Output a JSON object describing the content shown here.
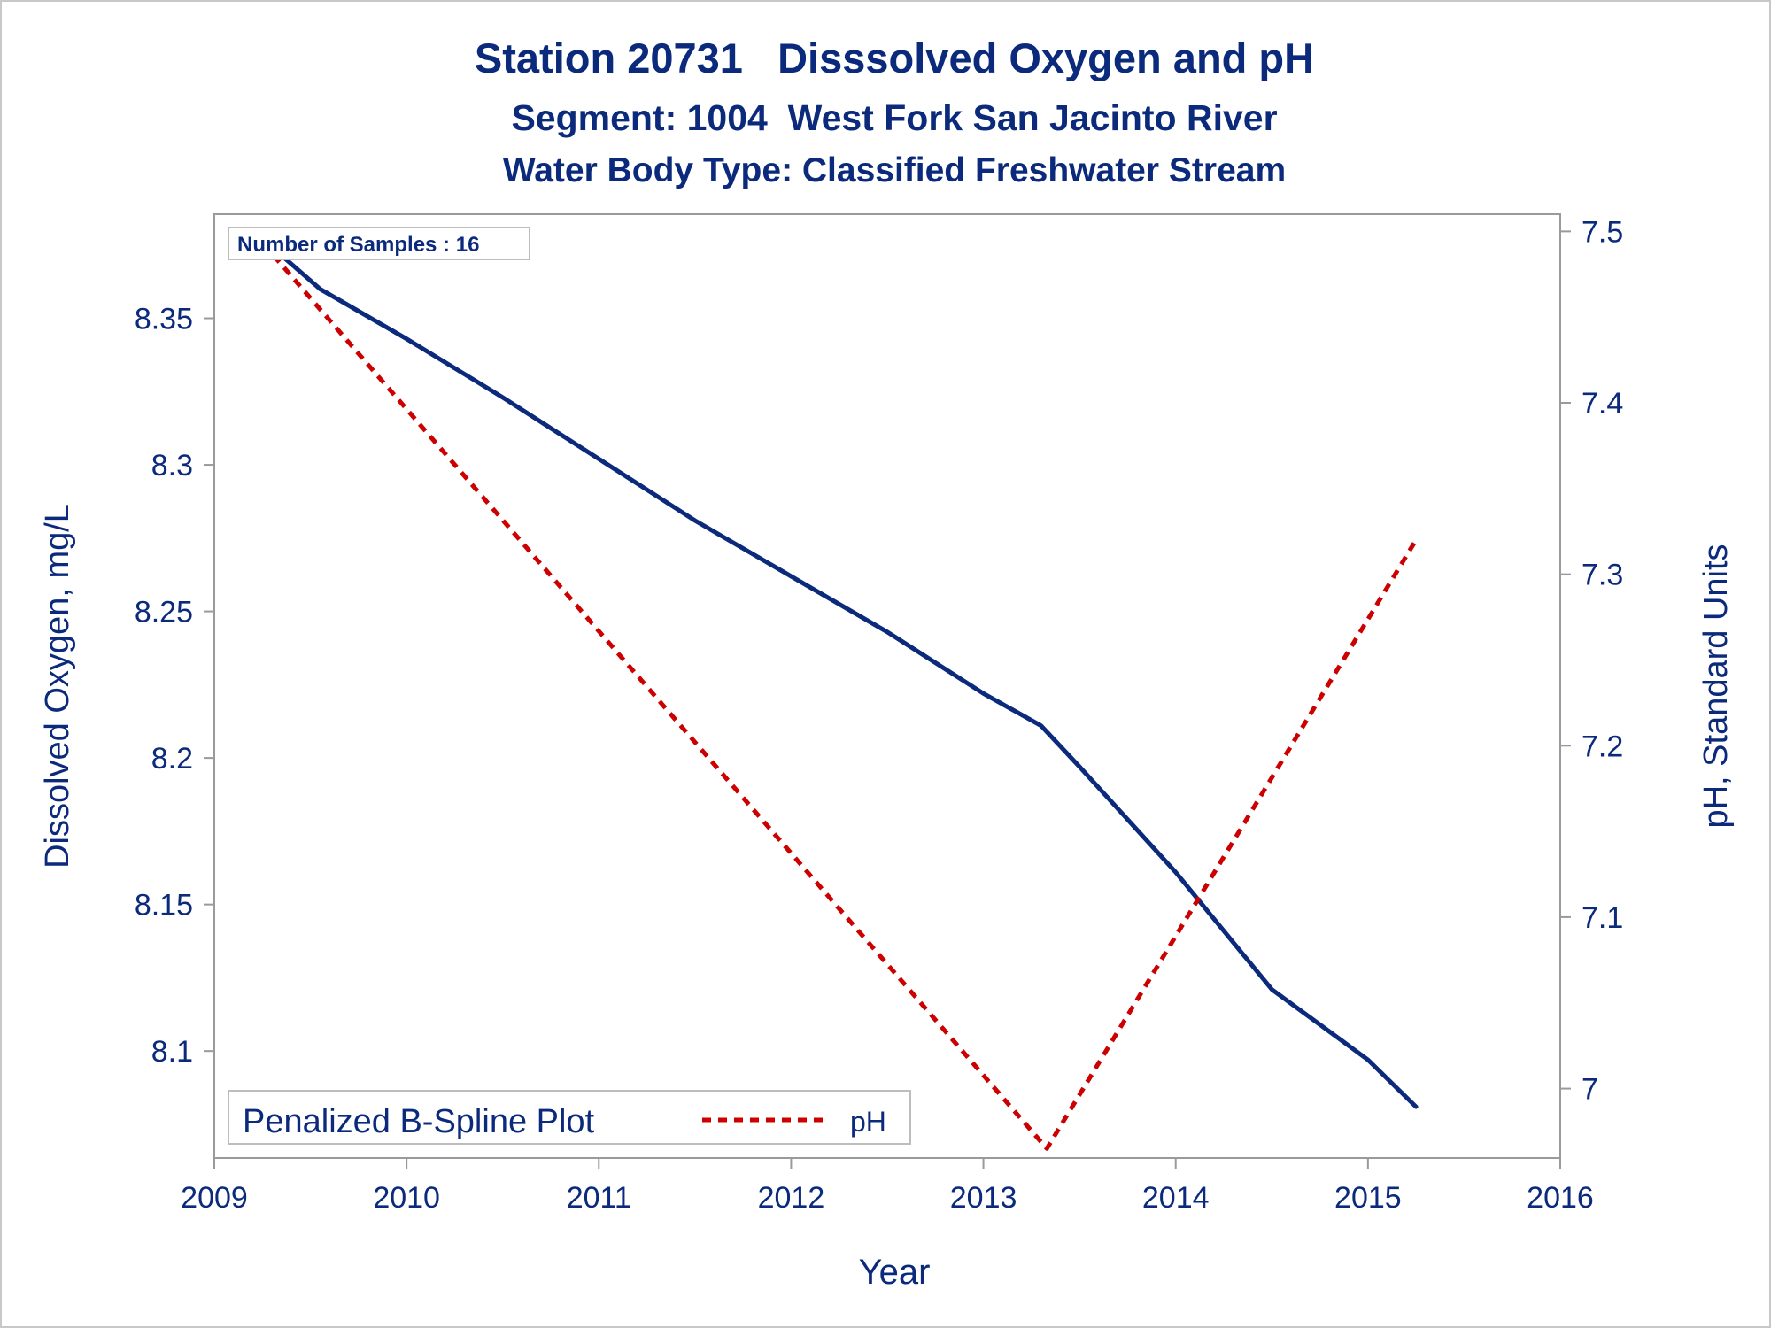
{
  "chart_data": {
    "type": "line",
    "title": "Station 20731   Disssolved Oxygen and pH",
    "subtitle": "Segment: 1004  West Fork San Jacinto River",
    "subtitle2": "Water Body Type: Classified Freshwater Stream",
    "xlabel": "Year",
    "ylabel": "Dissolved Oxygen, mg/L",
    "y2label": "pH, Standard Units",
    "xlim": [
      2009,
      2016
    ],
    "ylim": [
      8.0635,
      8.3855
    ],
    "y2lim": [
      6.9595,
      7.51
    ],
    "x_ticks": [
      "2009",
      "2010",
      "2011",
      "2012",
      "2013",
      "2014",
      "2015",
      "2016"
    ],
    "y_ticks": [
      "8.1",
      "8.15",
      "8.2",
      "8.25",
      "8.3",
      "8.35"
    ],
    "y2_ticks": [
      "7",
      "7.1",
      "7.2",
      "7.3",
      "7.4",
      "7.5"
    ],
    "annotation": "Number of Samples : 16",
    "legend": {
      "title": "Penalized B-Spline Plot",
      "placement": "bottom-left"
    },
    "series": [
      {
        "style": "solid",
        "axis": "left",
        "color": "#0b2a7c",
        "x": [
          2009.2,
          2009.55,
          2010.0,
          2010.5,
          2011.0,
          2011.5,
          2012.0,
          2012.5,
          2013.0,
          2013.3,
          2013.5,
          2014.0,
          2014.5,
          2015.0,
          2015.25
        ],
        "y": [
          8.38,
          8.36,
          8.343,
          8.323,
          8.302,
          8.281,
          8.262,
          8.243,
          8.222,
          8.211,
          8.197,
          8.161,
          8.121,
          8.097,
          8.081
        ]
      },
      {
        "name": "pH",
        "style": "dashed",
        "axis": "right",
        "color": "#cc0000",
        "x": [
          2009.2,
          2013.33,
          2015.25
        ],
        "y": [
          7.5,
          6.965,
          7.32
        ]
      }
    ]
  }
}
